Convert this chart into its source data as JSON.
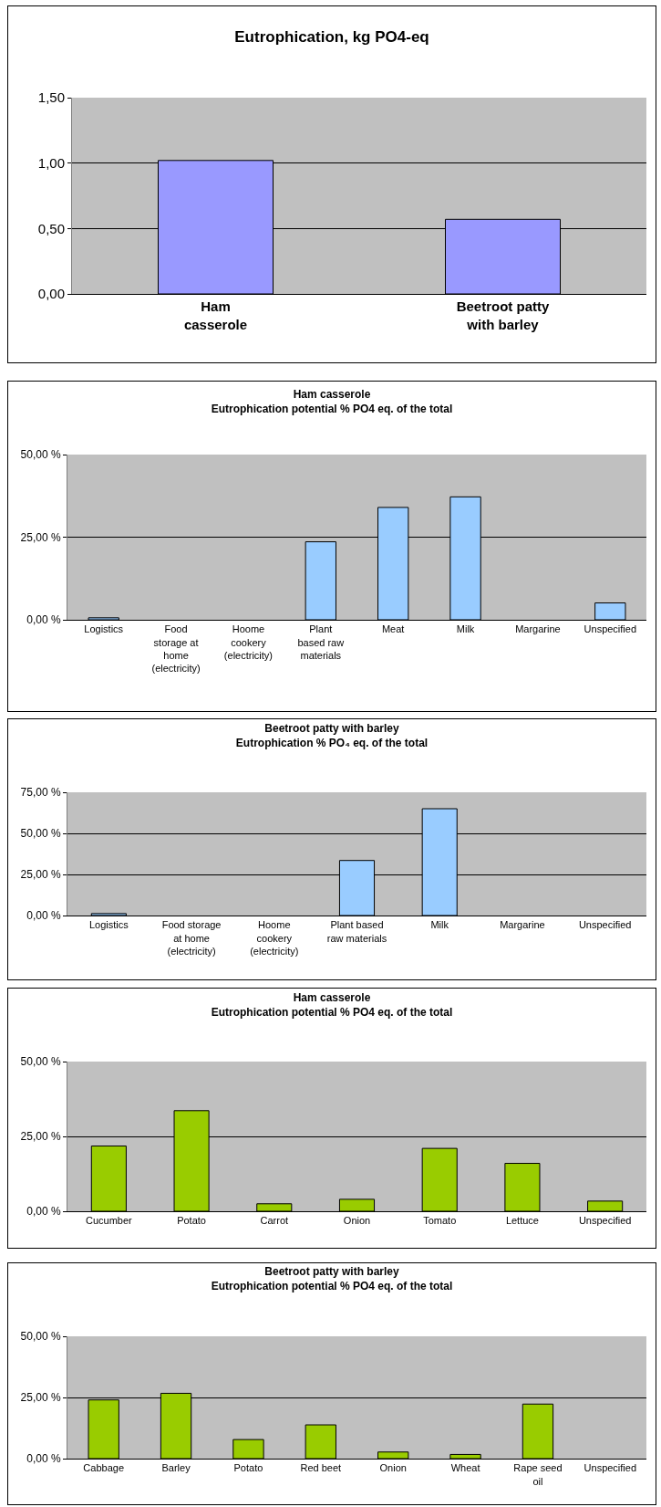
{
  "chart_data": [
    {
      "type": "bar",
      "title": "Eutrophication, kg PO4-eq",
      "categories": [
        "Ham\ncasserole",
        "Beetroot patty\nwith barley"
      ],
      "values": [
        1.02,
        0.57
      ],
      "color": "#9999ff",
      "ylim": [
        0,
        1.5
      ],
      "yticks": [
        {
          "value": 0,
          "label": "0,00"
        },
        {
          "value": 0.5,
          "label": "0,50"
        },
        {
          "value": 1,
          "label": "1,00"
        },
        {
          "value": 1.5,
          "label": "1,50"
        }
      ],
      "grid": "y",
      "legend": false
    },
    {
      "type": "bar",
      "title": "Ham casserole",
      "subtitle": "Eutrophication potential % PO4 eq. of the total",
      "categories": [
        "Logistics",
        "Food\nstorage at\nhome\n(electricity)",
        "Hoome\ncookery\n(electricity)",
        "Plant\nbased raw\nmaterials",
        "Meat",
        "Milk",
        "Margarine",
        "Unspecified"
      ],
      "values": [
        0.6,
        0,
        0,
        23.6,
        34,
        37.2,
        0,
        5.1
      ],
      "color": "#99ccff",
      "ylim": [
        0,
        50
      ],
      "yticks": [
        {
          "value": 0,
          "label": "0,00 %"
        },
        {
          "value": 25,
          "label": "25,00 %"
        },
        {
          "value": 50,
          "label": "50,00 %"
        }
      ],
      "grid": "y",
      "legend": false
    },
    {
      "type": "bar",
      "title": "Beetroot patty with barley",
      "subtitle": "Eutrophication % PO₄ eq. of the total",
      "categories": [
        "Logistics",
        "Food storage\nat home\n(electricity)",
        "Hoome\ncookery\n(electricity)",
        "Plant based\nraw materials",
        "Milk",
        "Margarine",
        "Unspecified"
      ],
      "values": [
        1.2,
        0,
        0,
        33.5,
        65,
        0,
        0
      ],
      "color": "#99ccff",
      "ylim": [
        0,
        75
      ],
      "yticks": [
        {
          "value": 0,
          "label": "0,00 %"
        },
        {
          "value": 25,
          "label": "25,00 %"
        },
        {
          "value": 50,
          "label": "50,00 %"
        },
        {
          "value": 75,
          "label": "75,00 %"
        }
      ],
      "grid": "y",
      "legend": false
    },
    {
      "type": "bar",
      "title": "Ham casserole",
      "subtitle": "Eutrophication potential % PO4 eq. of the total",
      "categories": [
        "Cucumber",
        "Potato",
        "Carrot",
        "Onion",
        "Tomato",
        "Lettuce",
        "Unspecified"
      ],
      "values": [
        21.8,
        33.6,
        2.5,
        4,
        21,
        16,
        3.4
      ],
      "color": "#99cc00",
      "ylim": [
        0,
        50
      ],
      "yticks": [
        {
          "value": 0,
          "label": "0,00 %"
        },
        {
          "value": 25,
          "label": "25,00 %"
        },
        {
          "value": 50,
          "label": "50,00 %"
        }
      ],
      "grid": "y",
      "legend": false
    },
    {
      "type": "bar",
      "title": "Beetroot patty with barley",
      "subtitle": "Eutrophication potential % PO4 eq. of the total",
      "categories": [
        "Cabbage",
        "Barley",
        "Potato",
        "Red beet",
        "Onion",
        "Wheat",
        "Rape seed\noil",
        "Unspecified"
      ],
      "values": [
        24,
        26.7,
        7.8,
        13.8,
        2.7,
        1.7,
        22.3,
        0
      ],
      "color": "#99cc00",
      "ylim": [
        0,
        50
      ],
      "yticks": [
        {
          "value": 0,
          "label": "0,00 %"
        },
        {
          "value": 25,
          "label": "25,00 %"
        },
        {
          "value": 50,
          "label": "50,00 %"
        }
      ],
      "grid": "y",
      "legend": false
    }
  ]
}
